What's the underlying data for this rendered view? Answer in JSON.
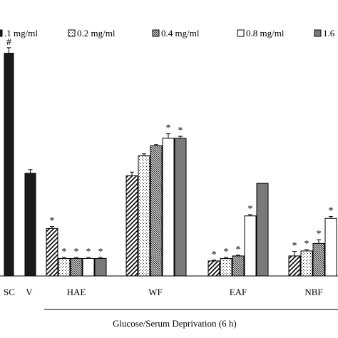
{
  "chart_data": {
    "type": "bar",
    "title": "",
    "xlabel": "Glucose/Serum Deprivation (6 h)",
    "ylabel": "",
    "legend_position": "top",
    "legend": [
      {
        "label": ".1 mg/ml",
        "pattern": "solid-black"
      },
      {
        "label": "0.2 mg/ml",
        "pattern": "dots"
      },
      {
        "label": "0.4 mg/ml",
        "pattern": "dense-hatch"
      },
      {
        "label": "0.8 mg/ml",
        "pattern": "white"
      },
      {
        "label": "1.6",
        "pattern": "solid-gray"
      }
    ],
    "value_scale": [
      0,
      100
    ],
    "controls": [
      {
        "label": "SC",
        "value": 89,
        "err": 2.2,
        "mark": "#"
      },
      {
        "label": "V",
        "value": 41,
        "err": 1.5,
        "mark": ""
      }
    ],
    "groups": [
      {
        "label": "HAE",
        "bars": [
          {
            "pattern": "sparse-hatch",
            "value": 19,
            "err": 0.8,
            "mark": "*"
          },
          {
            "pattern": "dots",
            "value": 7,
            "err": 0.4,
            "mark": "*"
          },
          {
            "pattern": "dense-hatch",
            "value": 7,
            "err": 0.4,
            "mark": "*"
          },
          {
            "pattern": "white",
            "value": 7,
            "err": 0.4,
            "mark": "*"
          },
          {
            "pattern": "solid-gray",
            "value": 7,
            "err": 0.4,
            "mark": "*"
          }
        ]
      },
      {
        "label": "WF",
        "bars": [
          {
            "pattern": "sparse-hatch",
            "value": 40,
            "err": 1.5,
            "mark": ""
          },
          {
            "pattern": "dots",
            "value": 48,
            "err": 0.8,
            "mark": ""
          },
          {
            "pattern": "dense-hatch",
            "value": 52,
            "err": 0.5,
            "mark": ""
          },
          {
            "pattern": "white",
            "value": 55,
            "err": 1.8,
            "mark": "*"
          },
          {
            "pattern": "solid-gray",
            "value": 55,
            "err": 0.8,
            "mark": "*"
          }
        ]
      },
      {
        "label": "EAF",
        "bars": [
          {
            "pattern": "sparse-hatch",
            "value": 6,
            "err": 0.3,
            "mark": "*"
          },
          {
            "pattern": "dots",
            "value": 7,
            "err": 0.4,
            "mark": "*"
          },
          {
            "pattern": "dense-hatch",
            "value": 8,
            "err": 0.3,
            "mark": "*"
          },
          {
            "pattern": "white",
            "value": 24,
            "err": 0.5,
            "mark": "*"
          },
          {
            "pattern": "solid-gray",
            "value": 37,
            "err": 0,
            "mark": ""
          }
        ]
      },
      {
        "label": "NBF",
        "bars": [
          {
            "pattern": "sparse-hatch",
            "value": 8,
            "err": 1.8,
            "mark": "*"
          },
          {
            "pattern": "dots",
            "value": 10,
            "err": 0.5,
            "mark": "*"
          },
          {
            "pattern": "dense-hatch",
            "value": 13,
            "err": 1.5,
            "mark": "*"
          },
          {
            "pattern": "white",
            "value": 23,
            "err": 0.8,
            "mark": "*"
          }
        ]
      }
    ]
  }
}
